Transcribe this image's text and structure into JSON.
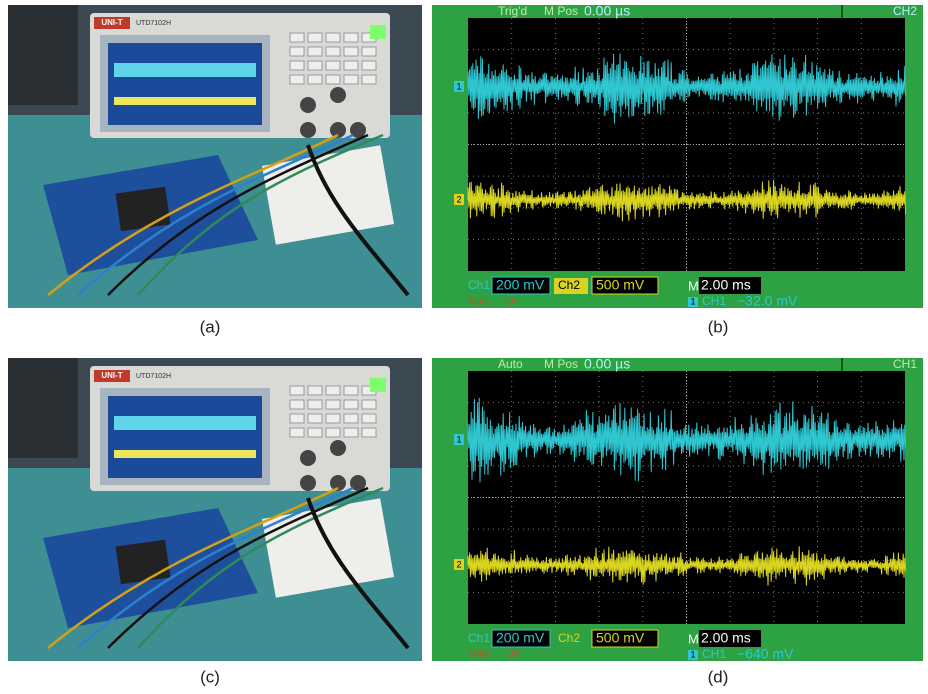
{
  "figure": {
    "panels": [
      {
        "caption": "(a)",
        "brand": "UNI-T",
        "model": "UTD7102H"
      },
      {
        "caption": "(b)"
      },
      {
        "caption": "(c)",
        "brand": "UNI-T",
        "model": "UTD7102H"
      },
      {
        "caption": "(d)"
      }
    ],
    "scopes": [
      {
        "trigger": "Trig'd",
        "mpos_label": "M Pos",
        "mpos": "0.00 µs",
        "channel": "CH2",
        "ch1_label": "Ch1",
        "ch1_scale": "200 mV",
        "ch2_label": "Ch2",
        "ch2_scale": "500 mV",
        "time_label": "M",
        "time_scale": "2.00 ms",
        "math_label": "Math",
        "math_state": "Off",
        "trig_marker": "1",
        "trig_source": "CH1",
        "trig_level": "−32.0 mV",
        "marker1": "1",
        "marker2": "2"
      },
      {
        "trigger": "Auto",
        "mpos_label": "M Pos",
        "mpos": "0.00 µs",
        "channel": "CH1",
        "ch1_label": "Ch1",
        "ch1_scale": "200 mV",
        "ch2_label": "Ch2",
        "ch2_scale": "500 mV",
        "time_label": "M",
        "time_scale": "2.00 ms",
        "math_label": "Math",
        "math_state": "Off",
        "trig_marker": "1",
        "trig_source": "CH1",
        "trig_level": "−640 mV",
        "marker1": "1",
        "marker2": "2"
      }
    ]
  }
}
